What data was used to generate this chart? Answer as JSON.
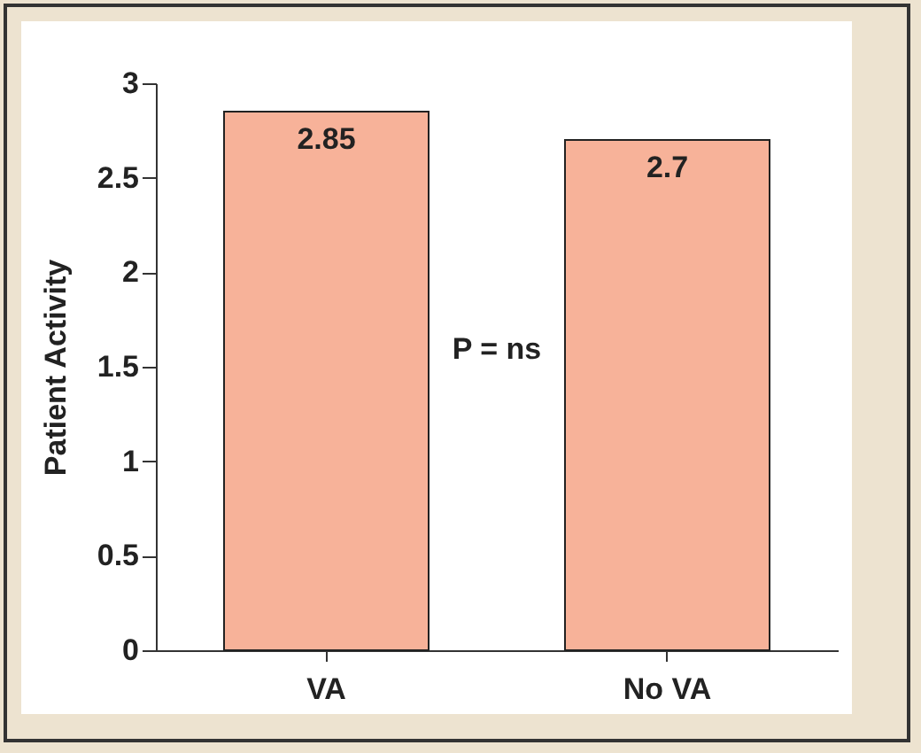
{
  "chart_data": {
    "type": "bar",
    "ylabel": "Patient Activity",
    "categories": [
      "VA",
      "No VA"
    ],
    "values": [
      2.85,
      2.7
    ],
    "color": "#f7b299",
    "ylim": [
      0,
      3
    ],
    "yticks": [
      0,
      0.5,
      1,
      1.5,
      2,
      2.5,
      3
    ],
    "data_labels": true,
    "annotations": [
      "P = ns"
    ]
  }
}
